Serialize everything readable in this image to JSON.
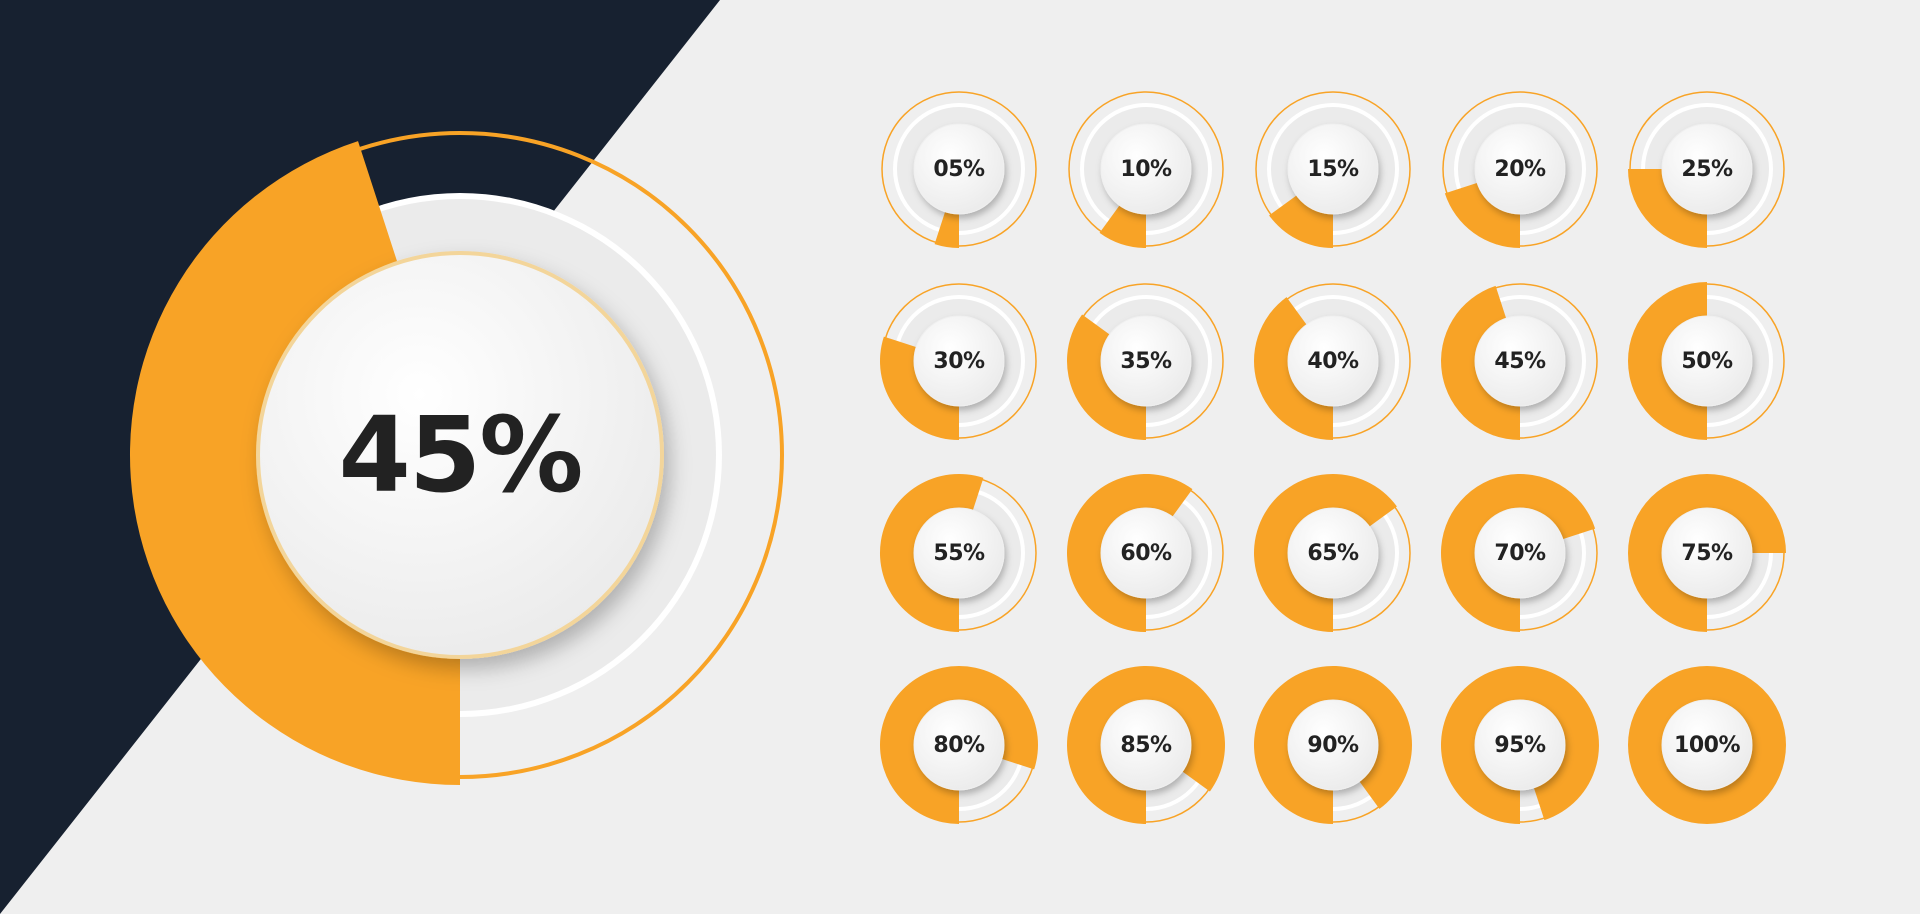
{
  "colors": {
    "accent": "#f8a326",
    "dark_background": "#172130",
    "light_background": "#efefef",
    "text": "#222222"
  },
  "featured": {
    "label": "45%",
    "value": 45
  },
  "meters": [
    {
      "label": "05%",
      "value": 5
    },
    {
      "label": "10%",
      "value": 10
    },
    {
      "label": "15%",
      "value": 15
    },
    {
      "label": "20%",
      "value": 20
    },
    {
      "label": "25%",
      "value": 25
    },
    {
      "label": "30%",
      "value": 30
    },
    {
      "label": "35%",
      "value": 35
    },
    {
      "label": "40%",
      "value": 40
    },
    {
      "label": "45%",
      "value": 45
    },
    {
      "label": "50%",
      "value": 50
    },
    {
      "label": "55%",
      "value": 55
    },
    {
      "label": "60%",
      "value": 60
    },
    {
      "label": "65%",
      "value": 65
    },
    {
      "label": "70%",
      "value": 70
    },
    {
      "label": "75%",
      "value": 75
    },
    {
      "label": "80%",
      "value": 80
    },
    {
      "label": "85%",
      "value": 85
    },
    {
      "label": "90%",
      "value": 90
    },
    {
      "label": "95%",
      "value": 95
    },
    {
      "label": "100%",
      "value": 100
    }
  ]
}
